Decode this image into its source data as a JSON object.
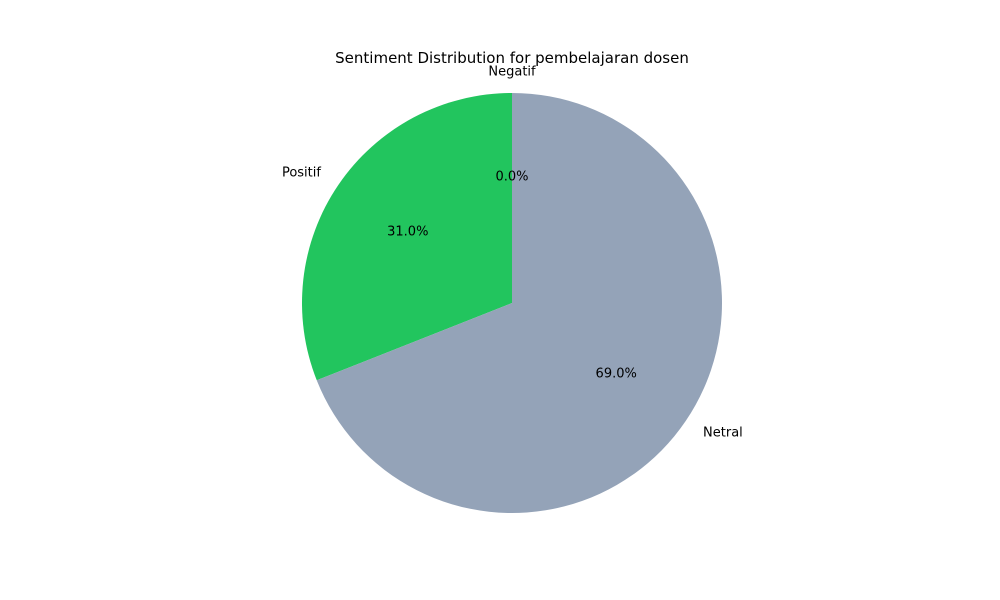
{
  "chart_data": {
    "type": "pie",
    "title": "Sentiment Distribution for pembelajaran dosen",
    "slices": [
      {
        "label": "Negatif",
        "value": 0.0,
        "pct_label": "0.0%",
        "color": "#ef4444"
      },
      {
        "label": "Positif",
        "value": 31.0,
        "pct_label": "31.0%",
        "color": "#22c55e"
      },
      {
        "label": "Netral",
        "value": 69.0,
        "pct_label": "69.0%",
        "color": "#94a3b8"
      }
    ],
    "start_angle_deg": 90,
    "direction": "counterclockwise",
    "legend": "none"
  }
}
